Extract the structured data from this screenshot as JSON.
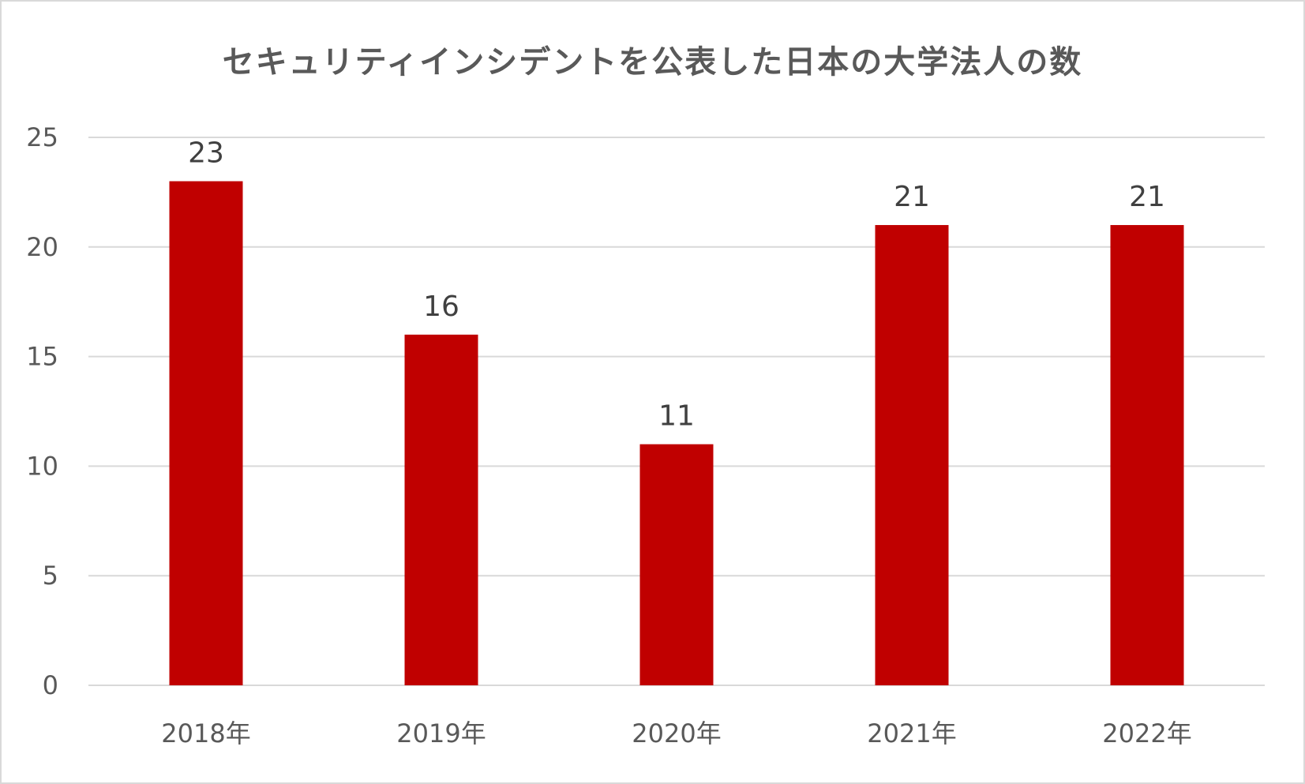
{
  "chart_data": {
    "type": "bar",
    "title": "セキュリティインシデントを公表した日本の大学法人の数",
    "categories": [
      "2018年",
      "2019年",
      "2020年",
      "2021年",
      "2022年"
    ],
    "values": [
      23,
      16,
      11,
      21,
      21
    ],
    "data_labels": [
      "23",
      "16",
      "11",
      "21",
      "21"
    ],
    "xlabel": "",
    "ylabel": "",
    "ylim": [
      0,
      25
    ],
    "yticks": [
      0,
      5,
      10,
      15,
      20,
      25
    ],
    "ytick_labels": [
      "0",
      "5",
      "10",
      "15",
      "20",
      "25"
    ],
    "grid": true,
    "legend": "none",
    "colors": {
      "bar": "#c00000",
      "grid": "#d9d9d9",
      "text": "#595959"
    }
  }
}
